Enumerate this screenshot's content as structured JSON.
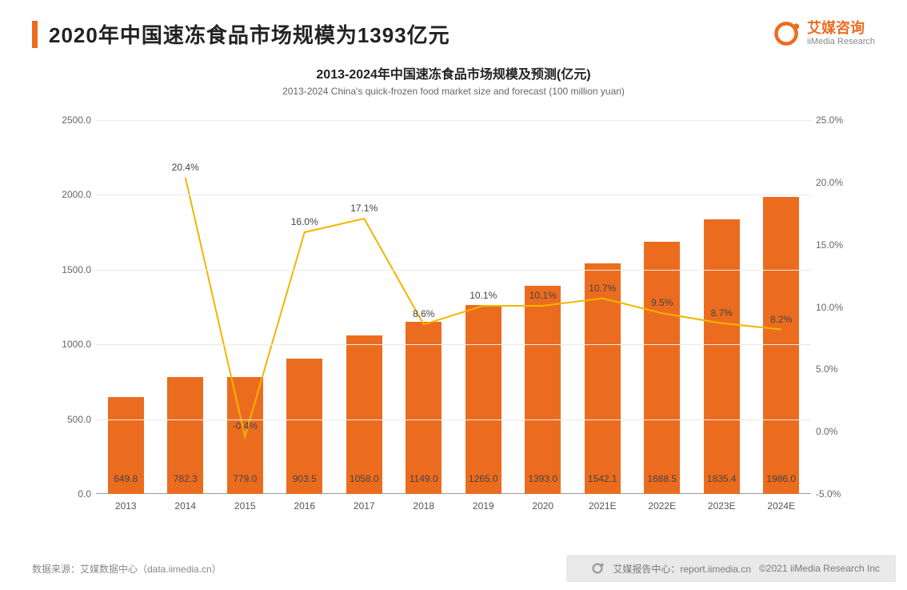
{
  "header": {
    "title": "2020年中国速冻食品市场规模为1393亿元",
    "logo_cn": "艾媒咨询",
    "logo_en": "iiMedia Research"
  },
  "chart": {
    "type": "bar+line",
    "title_cn": "2013-2024年中国速冻食品市场规模及预测(亿元)",
    "title_en": "2013-2024 China's quick-frozen food market size and forecast (100 million yuan)",
    "categories": [
      "2013",
      "2014",
      "2015",
      "2016",
      "2017",
      "2018",
      "2019",
      "2020",
      "2021E",
      "2022E",
      "2023E",
      "2024E"
    ],
    "bar_values": [
      649.8,
      782.3,
      779.0,
      903.5,
      1058.0,
      1149.0,
      1265.0,
      1393.0,
      1542.1,
      1688.5,
      1835.4,
      1986.0
    ],
    "line_values_pct": [
      null,
      20.4,
      -0.4,
      16.0,
      17.1,
      8.6,
      10.1,
      10.1,
      10.7,
      9.5,
      8.7,
      8.2
    ],
    "bar_color": "#ec6c1f",
    "line_color": "#f5b400",
    "y_left": {
      "min": 0.0,
      "max": 2500.0,
      "step": 500.0,
      "decimals": 1
    },
    "y_right": {
      "min": -5.0,
      "max": 25.0,
      "step": 5.0,
      "decimals": 1,
      "suffix": "%"
    },
    "grid_color": "#eaeaea",
    "background_color": "#ffffff",
    "label_fontsize": 12,
    "title_cn_fontsize": 16,
    "title_en_fontsize": 12,
    "bar_width_ratio": 0.6,
    "line_width": 2
  },
  "footer": {
    "source": "数据来源：艾媒数据中心（data.iimedia.cn）",
    "right1": "艾媒报告中心：report.iimedia.cn",
    "right2": "©2021  iiMedia Research  Inc"
  }
}
